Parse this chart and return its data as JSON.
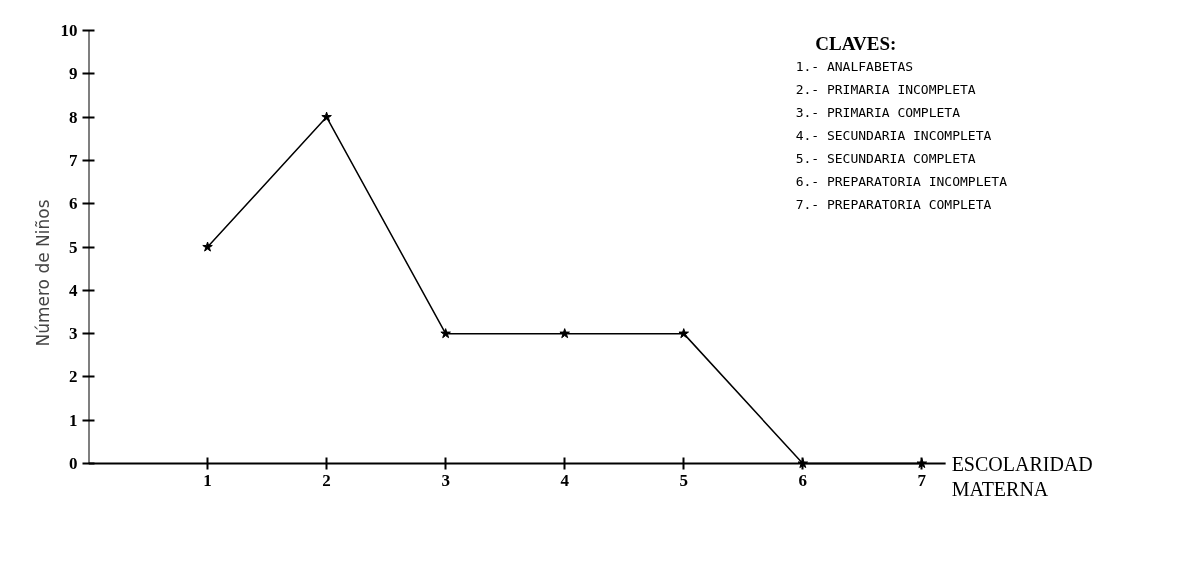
{
  "chart_data": {
    "type": "line",
    "x": [
      1,
      2,
      3,
      4,
      5,
      6,
      7
    ],
    "values": [
      5,
      8,
      3,
      3,
      3,
      0,
      0
    ],
    "color": "#000000",
    "marker": "star",
    "line_style": "solid",
    "grid": false,
    "xlim": [
      0,
      7.2
    ],
    "ylim": [
      0,
      10
    ],
    "xticks": [
      1,
      2,
      3,
      4,
      5,
      6,
      7
    ],
    "yticks": [
      0,
      1,
      2,
      3,
      4,
      5,
      6,
      7,
      8,
      9,
      10
    ],
    "xlabel": "ESCOLARIDAD\nMATERNA",
    "ylabel": "Número de Niños",
    "annotations": [
      "CLAVES:",
      "1.- ANALFABETAS",
      "2.- PRIMARIA INCOMPLETA",
      "3.- PRIMARIA COMPLETA",
      "4.- SECUNDARIA INCOMPLETA",
      "5.- SECUNDARIA COMPLETA",
      "6.- PREPARATORIA INCOMPLETA",
      "7.- PREPARATORIA COMPLETA"
    ]
  }
}
